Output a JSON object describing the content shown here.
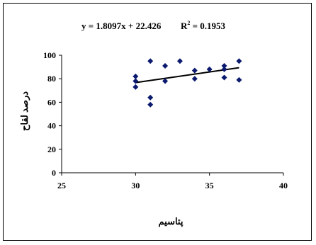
{
  "chart_data": {
    "type": "scatter",
    "title": "",
    "equation": "y = 1.8097x + 22.426",
    "r2_prefix": "R",
    "r2_exp": "2",
    "r2_value": " = 0.1953",
    "xlabel": "پتاسیم",
    "ylabel": "درصد لقاح",
    "xlim": [
      25,
      40
    ],
    "ylim": [
      0,
      100
    ],
    "xticks": [
      25,
      30,
      35,
      40
    ],
    "yticks": [
      0,
      20,
      40,
      60,
      80,
      100
    ],
    "grid": false,
    "marker": "diamond",
    "marker_color": "#0b1a6e",
    "trendline": {
      "slope": 1.8097,
      "intercept": 22.426,
      "x_start": 30,
      "x_end": 37,
      "color": "#000000"
    },
    "points": [
      {
        "x": 30,
        "y": 82
      },
      {
        "x": 30,
        "y": 78
      },
      {
        "x": 30,
        "y": 73
      },
      {
        "x": 31,
        "y": 95
      },
      {
        "x": 31,
        "y": 64
      },
      {
        "x": 31,
        "y": 58
      },
      {
        "x": 32,
        "y": 91
      },
      {
        "x": 32,
        "y": 78
      },
      {
        "x": 33,
        "y": 95
      },
      {
        "x": 34,
        "y": 87
      },
      {
        "x": 34,
        "y": 80
      },
      {
        "x": 35,
        "y": 88
      },
      {
        "x": 36,
        "y": 91
      },
      {
        "x": 36,
        "y": 88
      },
      {
        "x": 36,
        "y": 81
      },
      {
        "x": 37,
        "y": 95
      },
      {
        "x": 37,
        "y": 79
      }
    ]
  }
}
